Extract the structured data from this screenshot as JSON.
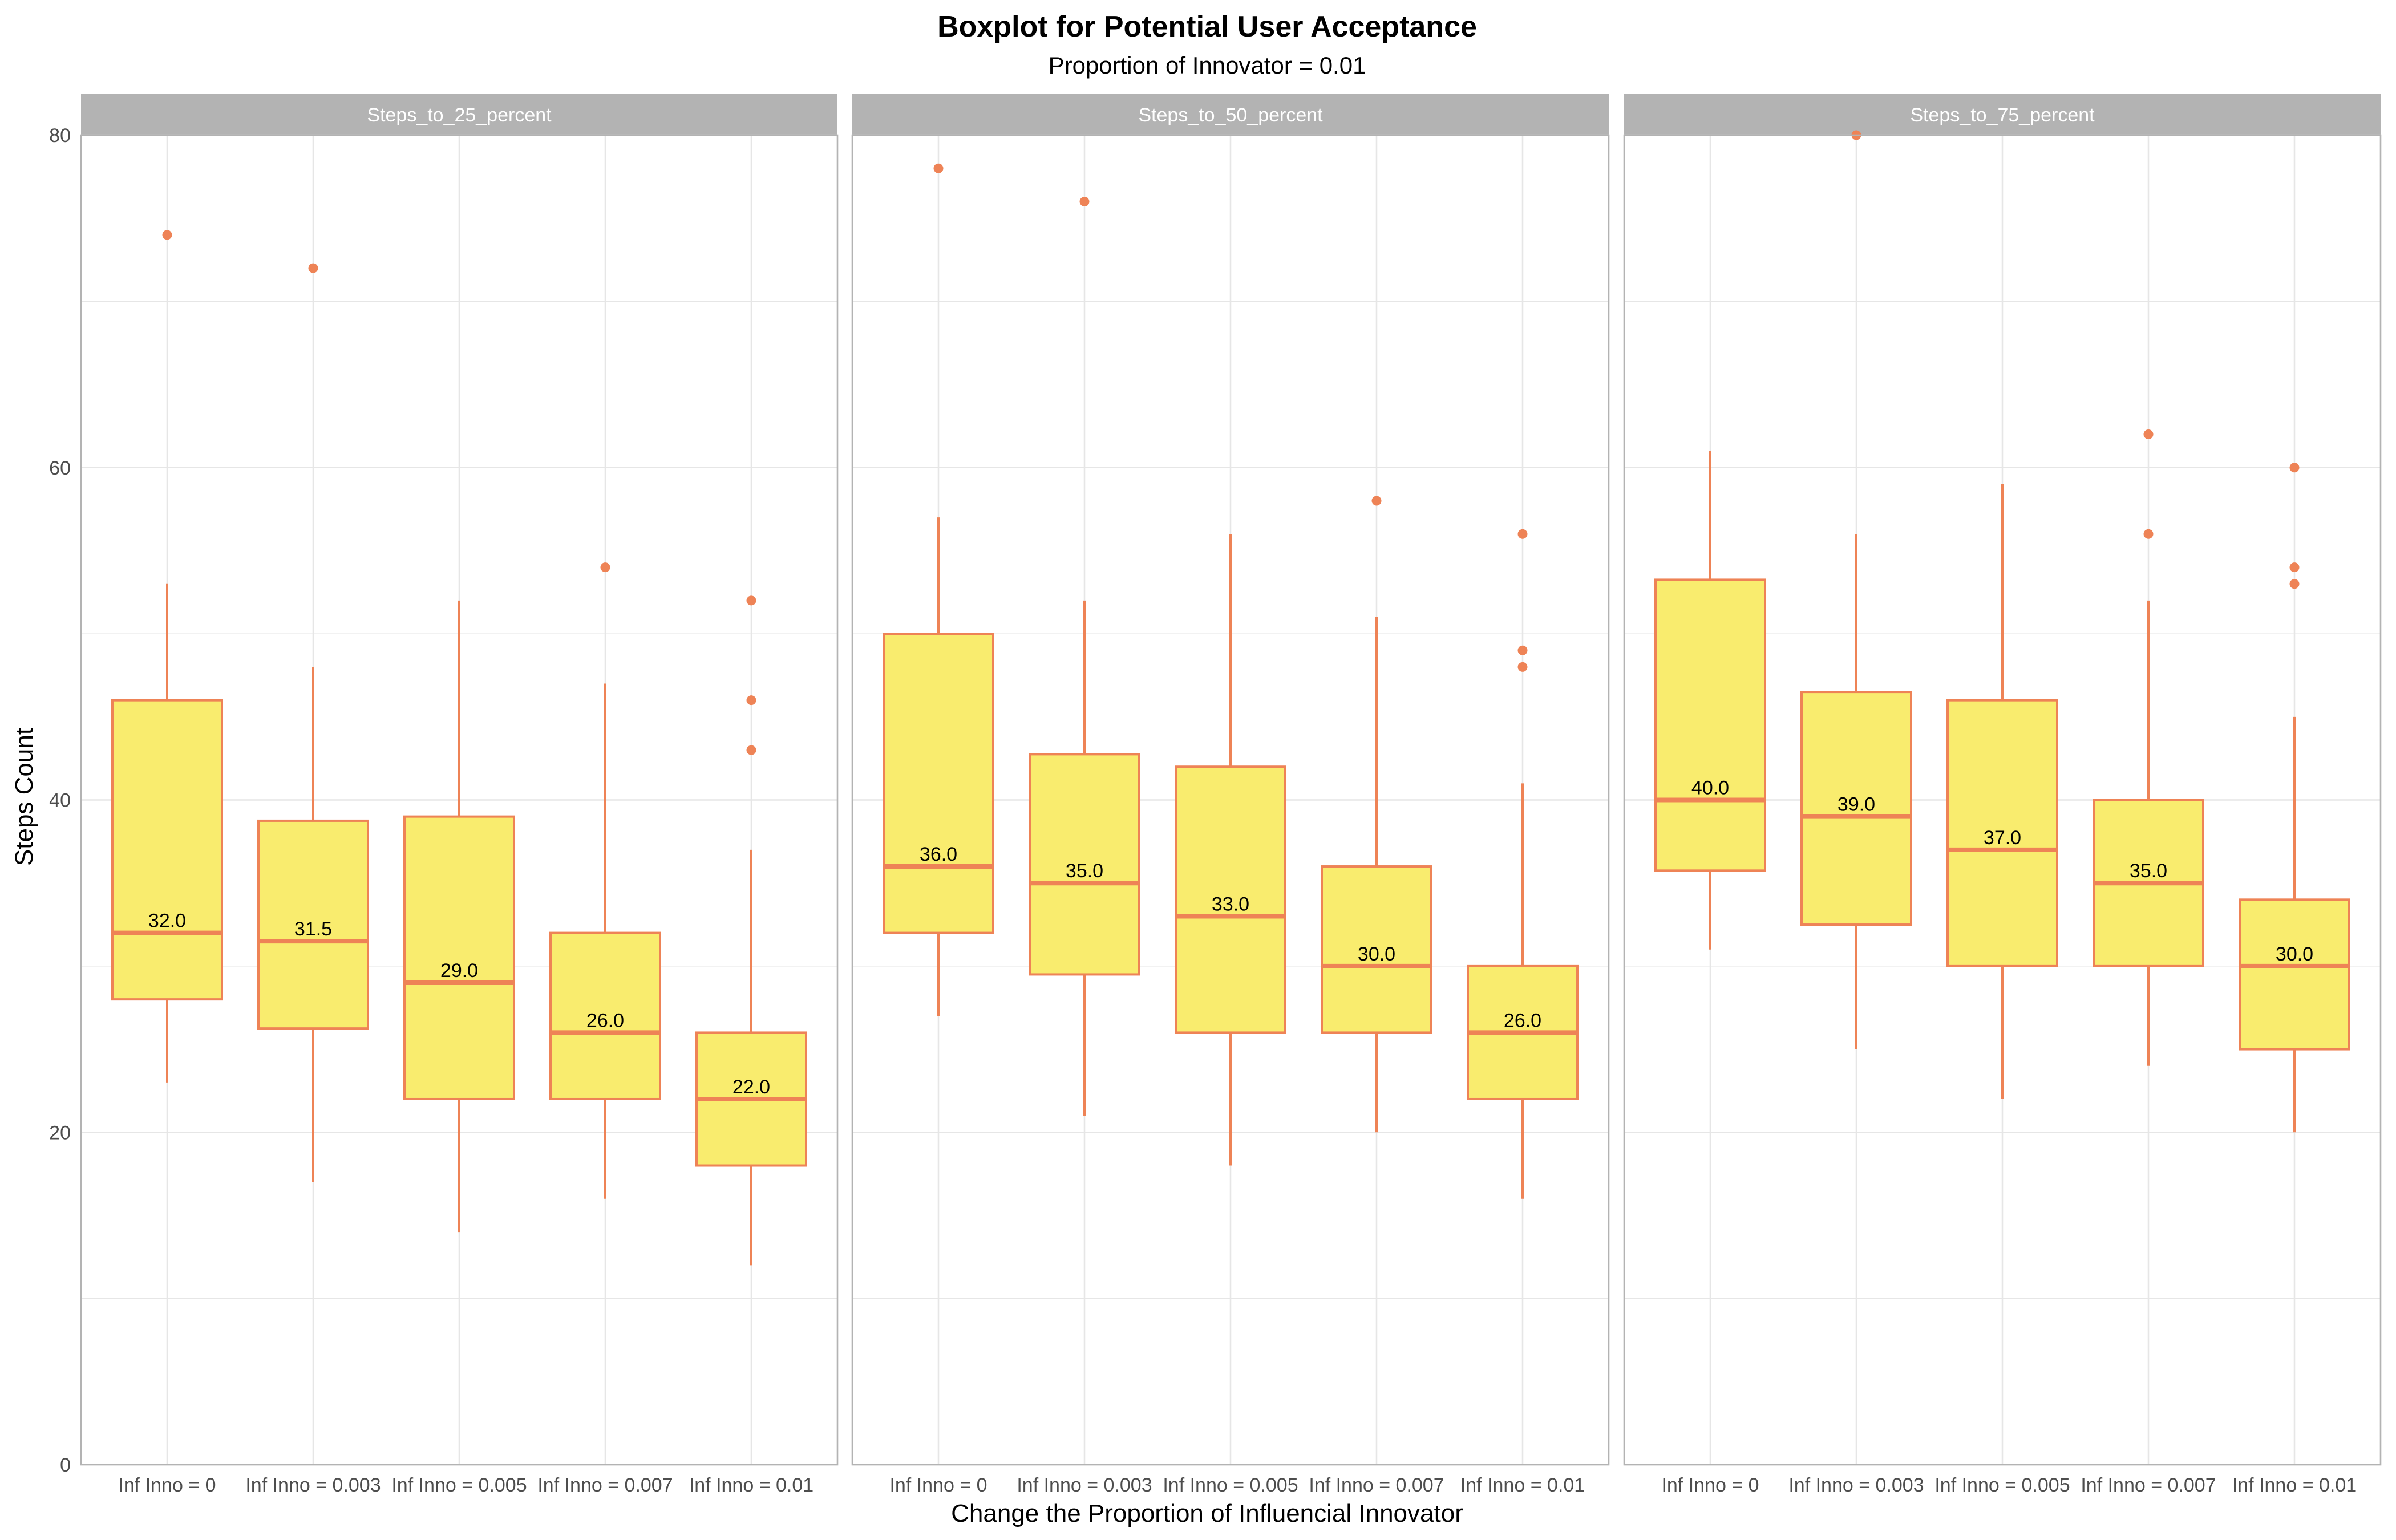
{
  "chart_data": {
    "type": "boxplot",
    "title": "Boxplot for Potential User Acceptance",
    "subtitle": "Proportion of Innovator = 0.01",
    "xlabel": "Change the Proportion of Influencial Innovator",
    "ylabel": "Steps Count",
    "ylim": [
      0,
      80
    ],
    "yticks": [
      "0",
      "20",
      "40",
      "60",
      "80"
    ],
    "grid": true,
    "colors": {
      "box_fill": "#f9ec6e",
      "box_stroke": "#ee8356",
      "strip_fill": "#b3b3b3",
      "panel_border": "#b3b3b3",
      "grid": "#e6e6e6"
    },
    "categories": [
      "Inf Inno = 0",
      "Inf Inno = 0.003",
      "Inf Inno = 0.005",
      "Inf Inno = 0.007",
      "Inf Inno = 0.01"
    ],
    "panels": [
      {
        "strip": "Steps_to_25_percent",
        "boxes": [
          {
            "min": 23,
            "q1": 28,
            "median": 32,
            "q3": 46,
            "max": 53,
            "label": "32.0",
            "outliers": [
              74
            ]
          },
          {
            "min": 17,
            "q1": 26.25,
            "median": 31.5,
            "q3": 38.75,
            "max": 48,
            "label": "31.5",
            "outliers": [
              72
            ]
          },
          {
            "min": 14,
            "q1": 22,
            "median": 29,
            "q3": 39,
            "max": 52,
            "label": "29.0",
            "outliers": []
          },
          {
            "min": 16,
            "q1": 22,
            "median": 26,
            "q3": 32,
            "max": 47,
            "label": "26.0",
            "outliers": [
              54
            ]
          },
          {
            "min": 12,
            "q1": 18,
            "median": 22,
            "q3": 26,
            "max": 37,
            "label": "22.0",
            "outliers": [
              52,
              46,
              43
            ]
          }
        ]
      },
      {
        "strip": "Steps_to_50_percent",
        "boxes": [
          {
            "min": 27,
            "q1": 32,
            "median": 36,
            "q3": 50,
            "max": 57,
            "label": "36.0",
            "outliers": [
              78
            ]
          },
          {
            "min": 21,
            "q1": 29.5,
            "median": 35,
            "q3": 42.75,
            "max": 52,
            "label": "35.0",
            "outliers": [
              76
            ]
          },
          {
            "min": 18,
            "q1": 26,
            "median": 33,
            "q3": 42,
            "max": 56,
            "label": "33.0",
            "outliers": []
          },
          {
            "min": 20,
            "q1": 26,
            "median": 30,
            "q3": 36,
            "max": 51,
            "label": "30.0",
            "outliers": [
              58
            ]
          },
          {
            "min": 16,
            "q1": 22,
            "median": 26,
            "q3": 30,
            "max": 41,
            "label": "26.0",
            "outliers": [
              56,
              49,
              48
            ]
          }
        ]
      },
      {
        "strip": "Steps_to_75_percent",
        "boxes": [
          {
            "min": 31,
            "q1": 35.75,
            "median": 40,
            "q3": 53.25,
            "max": 61,
            "label": "40.0",
            "outliers": []
          },
          {
            "min": 25,
            "q1": 32.5,
            "median": 39,
            "q3": 46.5,
            "max": 56,
            "label": "39.0",
            "outliers": [
              80
            ]
          },
          {
            "min": 22,
            "q1": 30,
            "median": 37,
            "q3": 46,
            "max": 59,
            "label": "37.0",
            "outliers": []
          },
          {
            "min": 24,
            "q1": 30,
            "median": 35,
            "q3": 40,
            "max": 52,
            "label": "35.0",
            "outliers": [
              62,
              56
            ]
          },
          {
            "min": 20,
            "q1": 25,
            "median": 30,
            "q3": 34,
            "max": 45,
            "label": "30.0",
            "outliers": [
              60,
              54,
              53
            ]
          }
        ]
      }
    ]
  }
}
